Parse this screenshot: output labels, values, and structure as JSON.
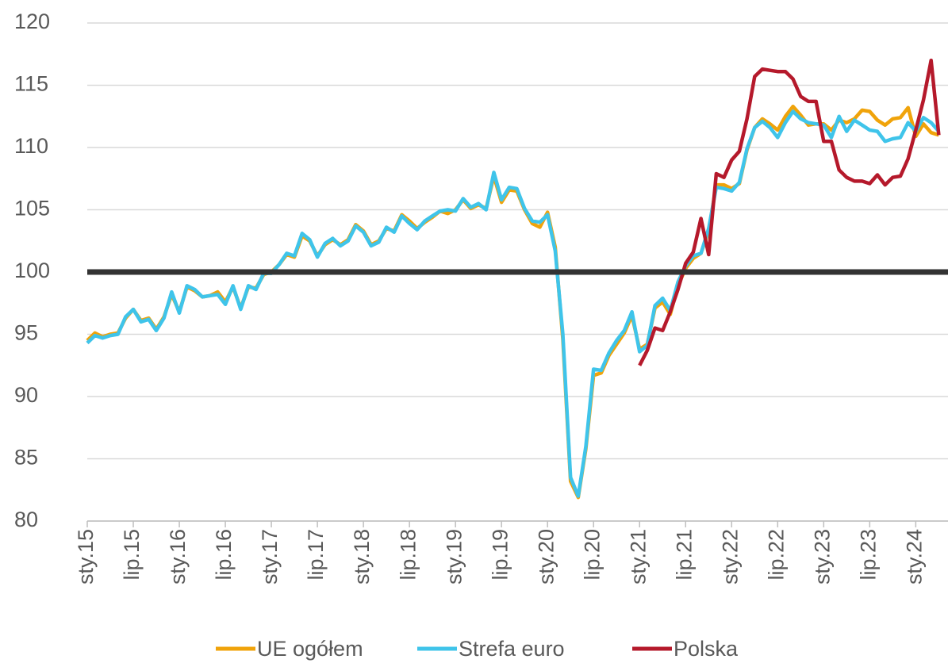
{
  "chart_data": {
    "type": "line",
    "categories": [
      "sty.15",
      null,
      null,
      null,
      null,
      null,
      "lip.15",
      null,
      null,
      null,
      null,
      null,
      "sty.16",
      null,
      null,
      null,
      null,
      null,
      "lip.16",
      null,
      null,
      null,
      null,
      null,
      "sty.17",
      null,
      null,
      null,
      null,
      null,
      "lip.17",
      null,
      null,
      null,
      null,
      null,
      "sty.18",
      null,
      null,
      null,
      null,
      null,
      "lip.18",
      null,
      null,
      null,
      null,
      null,
      "sty.19",
      null,
      null,
      null,
      null,
      null,
      "lip.19",
      null,
      null,
      null,
      null,
      null,
      "sty.20",
      null,
      null,
      null,
      null,
      null,
      "lip.20",
      null,
      null,
      null,
      null,
      null,
      "sty.21",
      null,
      null,
      null,
      null,
      null,
      "lip.21",
      null,
      null,
      null,
      null,
      null,
      "sty.22",
      null,
      null,
      null,
      null,
      null,
      "lip.22",
      null,
      null,
      null,
      null,
      null,
      "sty.23",
      null,
      null,
      null,
      null,
      null,
      "lip.23",
      null,
      null,
      null,
      null,
      null,
      "sty.24",
      null,
      null,
      null
    ],
    "series": [
      {
        "name": "UE ogółem",
        "color": "#f0a30a",
        "values": [
          94.5,
          95.1,
          94.8,
          95.0,
          95.1,
          96.3,
          97.0,
          96.1,
          96.3,
          95.4,
          96.4,
          98.2,
          96.8,
          98.8,
          98.5,
          98.0,
          98.1,
          98.4,
          97.6,
          98.8,
          97.1,
          98.8,
          98.7,
          99.8,
          100.0,
          100.6,
          101.4,
          101.2,
          102.9,
          102.5,
          101.3,
          102.2,
          102.6,
          102.2,
          102.6,
          103.8,
          103.3,
          102.2,
          102.5,
          103.5,
          103.3,
          104.6,
          104.1,
          103.5,
          104.0,
          104.4,
          104.9,
          104.7,
          105.0,
          105.8,
          105.1,
          105.4,
          105.1,
          107.7,
          105.6,
          106.6,
          106.5,
          105.0,
          103.9,
          103.6,
          104.8,
          102.0,
          94.6,
          83.2,
          81.9,
          85.8,
          91.7,
          91.9,
          93.3,
          94.2,
          95.1,
          96.5,
          93.8,
          94.2,
          97.1,
          97.6,
          96.6,
          98.9,
          100.3,
          101.1,
          101.5,
          103.3,
          107.0,
          107.0,
          106.7,
          107.1,
          109.8,
          111.6,
          112.3,
          111.9,
          111.4,
          112.5,
          113.3,
          112.6,
          111.8,
          111.9,
          111.9,
          111.4,
          112.2,
          112.0,
          112.3,
          113.0,
          112.9,
          112.2,
          111.8,
          112.3,
          112.4,
          113.2,
          110.9,
          111.9,
          111.2,
          111.0
        ]
      },
      {
        "name": "Strefa euro",
        "color": "#3fc4ea",
        "values": [
          94.3,
          94.9,
          94.7,
          94.9,
          95.0,
          96.4,
          97.0,
          96.0,
          96.2,
          95.3,
          96.3,
          98.4,
          96.7,
          98.9,
          98.6,
          98.0,
          98.1,
          98.2,
          97.4,
          98.9,
          97.0,
          98.9,
          98.6,
          99.9,
          99.9,
          100.6,
          101.5,
          101.3,
          103.1,
          102.6,
          101.2,
          102.3,
          102.7,
          102.1,
          102.5,
          103.7,
          103.2,
          102.1,
          102.4,
          103.6,
          103.2,
          104.5,
          103.9,
          103.4,
          104.1,
          104.5,
          104.9,
          105.0,
          104.9,
          105.9,
          105.2,
          105.5,
          105.0,
          108.0,
          105.8,
          106.8,
          106.7,
          105.1,
          104.1,
          104.0,
          104.6,
          101.7,
          95.0,
          83.5,
          82.0,
          86.0,
          92.2,
          92.1,
          93.5,
          94.5,
          95.3,
          96.8,
          93.6,
          94.1,
          97.3,
          97.9,
          96.9,
          99.2,
          100.5,
          101.3,
          101.5,
          103.5,
          106.8,
          106.7,
          106.5,
          107.2,
          109.9,
          111.6,
          112.1,
          111.6,
          110.8,
          112.0,
          112.9,
          112.3,
          112.0,
          111.9,
          111.8,
          110.8,
          112.5,
          111.3,
          112.2,
          111.8,
          111.4,
          111.3,
          110.5,
          110.7,
          110.8,
          112.0,
          111.3,
          112.4,
          112.0,
          111.3
        ]
      },
      {
        "name": "Polska",
        "color": "#b5192b",
        "values": [
          null,
          null,
          null,
          null,
          null,
          null,
          null,
          null,
          null,
          null,
          null,
          null,
          null,
          null,
          null,
          null,
          null,
          null,
          null,
          null,
          null,
          null,
          null,
          null,
          null,
          null,
          null,
          null,
          null,
          null,
          null,
          null,
          null,
          null,
          null,
          null,
          null,
          null,
          null,
          null,
          null,
          null,
          null,
          null,
          null,
          null,
          null,
          null,
          null,
          null,
          null,
          null,
          null,
          null,
          null,
          null,
          null,
          null,
          null,
          null,
          null,
          null,
          null,
          null,
          null,
          null,
          null,
          null,
          null,
          null,
          null,
          null,
          92.5,
          93.7,
          95.5,
          95.3,
          96.8,
          98.6,
          100.7,
          101.6,
          104.3,
          101.4,
          107.9,
          107.6,
          109.0,
          109.7,
          112.3,
          115.7,
          116.3,
          116.2,
          116.1,
          116.1,
          115.5,
          114.1,
          113.7,
          113.7,
          110.5,
          110.5,
          108.2,
          107.6,
          107.3,
          107.3,
          107.1,
          107.8,
          107.0,
          107.6,
          107.7,
          109.1,
          111.4,
          113.8,
          117.0,
          111.0
        ]
      }
    ],
    "reference_line": {
      "value": 100,
      "color": "#333333"
    },
    "ylim": [
      80,
      120
    ],
    "yticks": [
      80,
      85,
      90,
      95,
      100,
      105,
      110,
      115,
      120
    ],
    "grid": true,
    "legend": "bottom"
  }
}
